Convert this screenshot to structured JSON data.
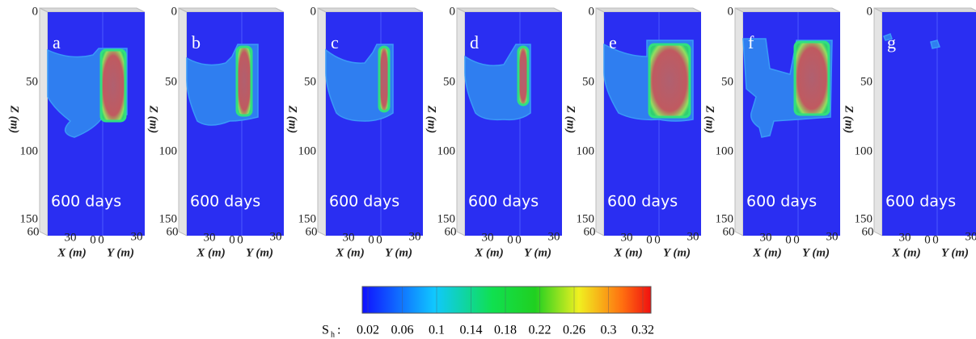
{
  "panels": [
    {
      "label": "a",
      "time": "600 days"
    },
    {
      "label": "b",
      "time": "600 days"
    },
    {
      "label": "c",
      "time": "600 days"
    },
    {
      "label": "d",
      "time": "600 days"
    },
    {
      "label": "e",
      "time": "600 days"
    },
    {
      "label": "f",
      "time": "600 days"
    },
    {
      "label": "g",
      "time": "600 days"
    }
  ],
  "axes": {
    "z_label": "Z (m)",
    "z_ticks": [
      "0",
      "50",
      "100",
      "150"
    ],
    "x_label": "X (m)",
    "x_ticks": [
      "60",
      "30",
      "0"
    ],
    "y_label": "Y (m)",
    "y_ticks": [
      "0",
      "30"
    ]
  },
  "colorbar": {
    "label": "S",
    "subscript": "h",
    "separator": ":",
    "ticks": [
      "0.02",
      "0.06",
      "0.1",
      "0.14",
      "0.18",
      "0.22",
      "0.26",
      "0.3",
      "0.32"
    ]
  }
}
